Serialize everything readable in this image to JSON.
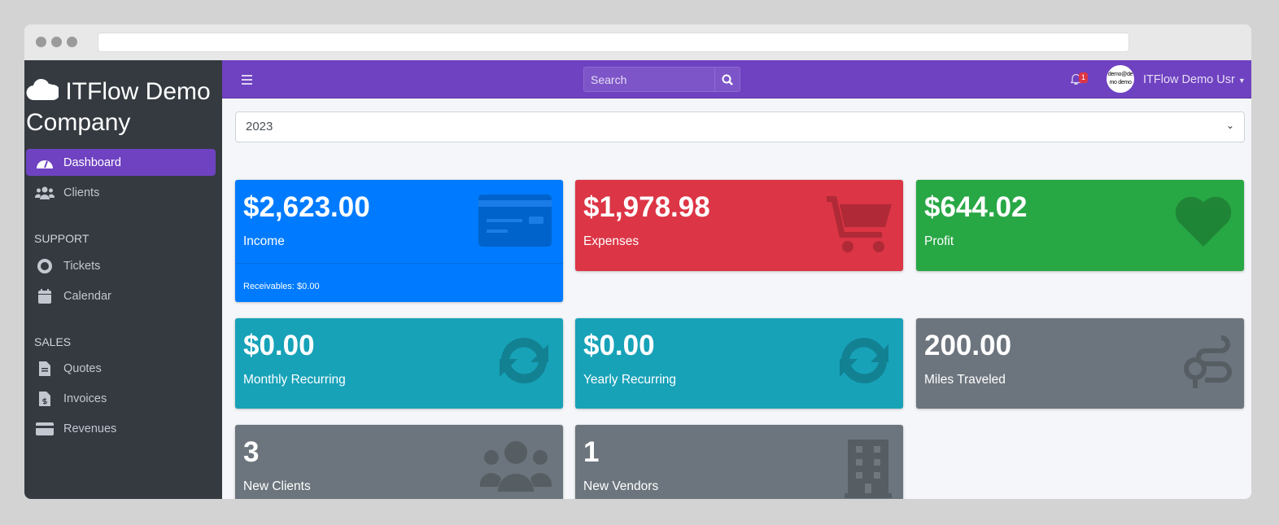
{
  "brand": {
    "name": "ITFlow Demo Company",
    "icon": "cloud-icon"
  },
  "sidebar": {
    "items": [
      {
        "label": "Dashboard",
        "icon": "dashboard-icon",
        "active": true
      },
      {
        "label": "Clients",
        "icon": "users-icon"
      }
    ],
    "support_header": "SUPPORT",
    "support": [
      {
        "label": "Tickets",
        "icon": "life-ring-icon"
      },
      {
        "label": "Calendar",
        "icon": "calendar-icon"
      }
    ],
    "sales_header": "SALES",
    "sales": [
      {
        "label": "Quotes",
        "icon": "file-icon"
      },
      {
        "label": "Invoices",
        "icon": "invoice-icon"
      },
      {
        "label": "Revenues",
        "icon": "credit-card-icon"
      }
    ]
  },
  "topnav": {
    "search_placeholder": "Search",
    "notifications": "1",
    "avatar_text": "demo@demo demo",
    "user": "ITFlow Demo Usr"
  },
  "year_select": "2023",
  "cards": [
    {
      "value": "$2,623.00",
      "label": "Income",
      "footer": "Receivables: $0.00",
      "color": "#007bff",
      "icon": "credit-card-icon"
    },
    {
      "value": "$1,978.98",
      "label": "Expenses",
      "color": "#dc3545",
      "icon": "shopping-cart-icon"
    },
    {
      "value": "$644.02",
      "label": "Profit",
      "color": "#28a745",
      "icon": "heart-icon"
    },
    {
      "value": "$0.00",
      "label": "Monthly Recurring",
      "color": "#17a2b8",
      "icon": "sync-icon"
    },
    {
      "value": "$0.00",
      "label": "Yearly Recurring",
      "color": "#17a2b8",
      "icon": "sync-icon"
    },
    {
      "value": "200.00",
      "label": "Miles Traveled",
      "color": "#6c757d",
      "icon": "route-icon"
    },
    {
      "value": "3",
      "label": "New Clients",
      "color": "#6c757d",
      "icon": "users-icon"
    },
    {
      "value": "1",
      "label": "New Vendors",
      "color": "#6c757d",
      "icon": "building-icon"
    }
  ]
}
